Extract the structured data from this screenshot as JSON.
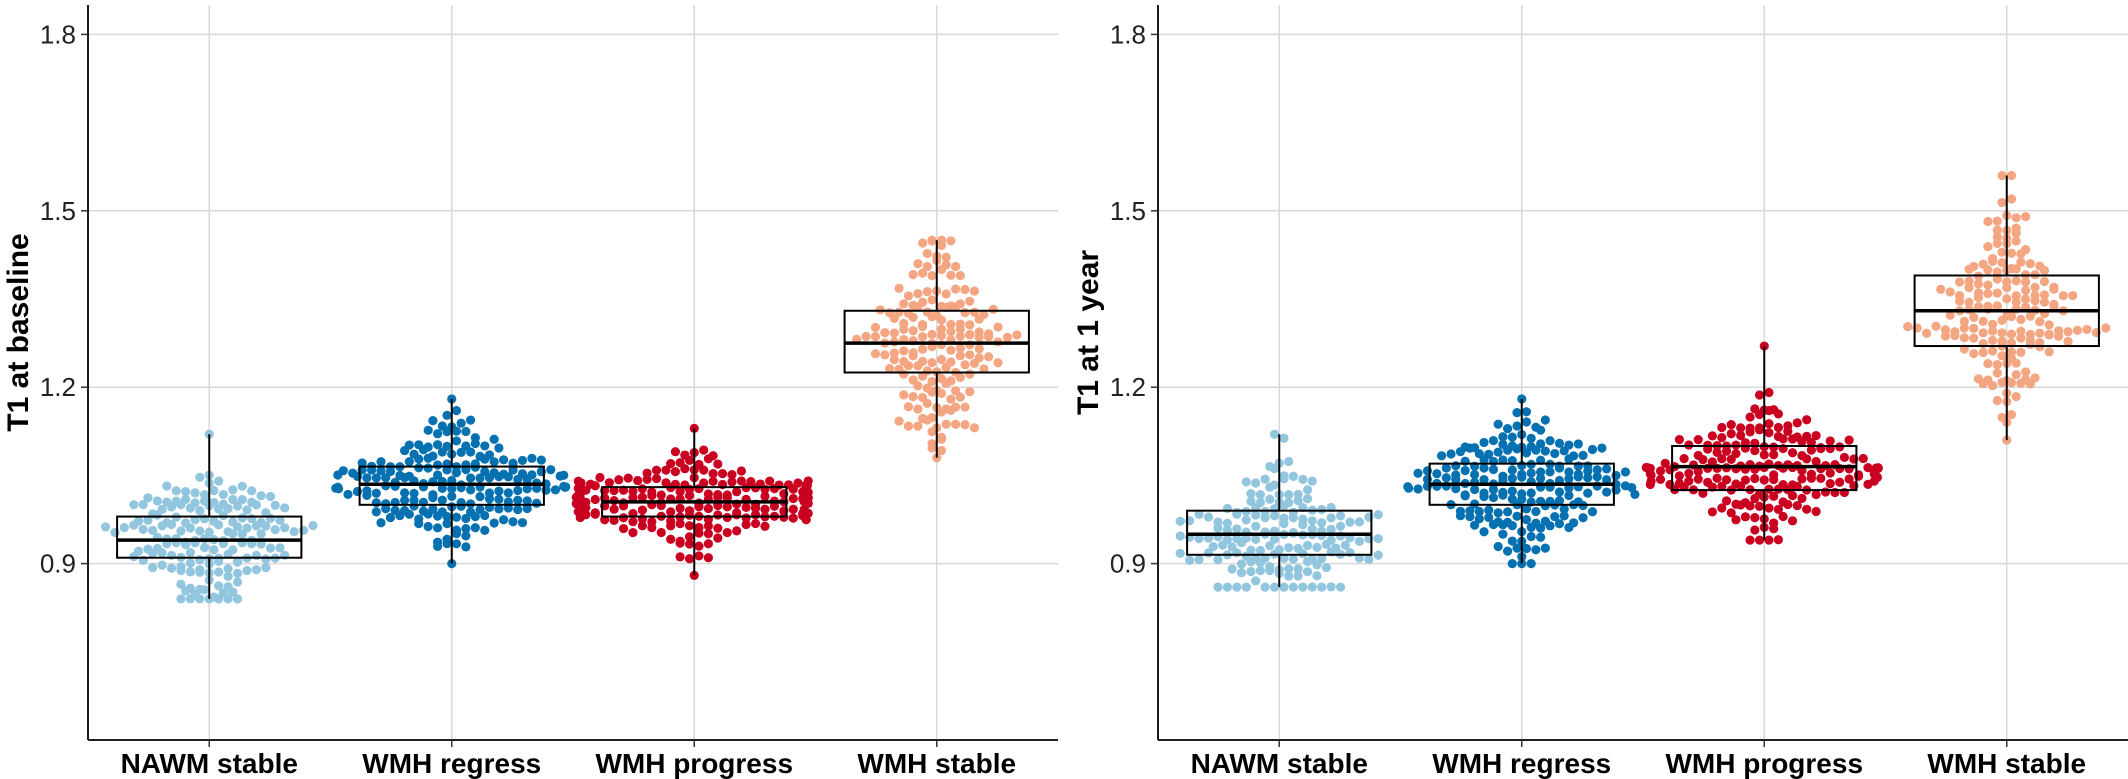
{
  "chart_data": [
    {
      "type": "scatter",
      "subtype": "beeswarm-with-boxplot",
      "ylabel": "T1 at baseline",
      "xlabel": "",
      "categories": [
        "NAWM stable",
        "WMH regress",
        "WMH progress",
        "WMH stable"
      ],
      "colors": [
        "#92c5de",
        "#0571b0",
        "#ca0020",
        "#f4a582"
      ],
      "ylim": [
        0.6,
        1.85
      ],
      "yticks": [
        0.9,
        1.2,
        1.5,
        1.8
      ],
      "yticklabels": [
        "0.9",
        "1.2",
        "1.5",
        "1.8"
      ],
      "grid": true,
      "legend": "none",
      "boxes": [
        {
          "category": "NAWM stable",
          "min": 0.84,
          "q1": 0.91,
          "median": 0.94,
          "q3": 0.98,
          "max": 1.12
        },
        {
          "category": "WMH regress",
          "min": 0.9,
          "q1": 1.0,
          "median": 1.035,
          "q3": 1.065,
          "max": 1.18
        },
        {
          "category": "WMH progress",
          "min": 0.88,
          "q1": 0.98,
          "median": 1.005,
          "q3": 1.03,
          "max": 1.13
        },
        {
          "category": "WMH stable",
          "min": 1.08,
          "q1": 1.225,
          "median": 1.275,
          "q3": 1.33,
          "max": 1.45
        }
      ]
    },
    {
      "type": "scatter",
      "subtype": "beeswarm-with-boxplot",
      "ylabel": "T1 at 1 year",
      "xlabel": "",
      "categories": [
        "NAWM stable",
        "WMH regress",
        "WMH progress",
        "WMH stable"
      ],
      "colors": [
        "#92c5de",
        "#0571b0",
        "#ca0020",
        "#f4a582"
      ],
      "ylim": [
        0.6,
        1.85
      ],
      "yticks": [
        0.9,
        1.2,
        1.5,
        1.8
      ],
      "yticklabels": [
        "0.9",
        "1.2",
        "1.5",
        "1.8"
      ],
      "grid": true,
      "legend": "none",
      "boxes": [
        {
          "category": "NAWM stable",
          "min": 0.86,
          "q1": 0.915,
          "median": 0.95,
          "q3": 0.99,
          "max": 1.12
        },
        {
          "category": "WMH regress",
          "min": 0.9,
          "q1": 1.0,
          "median": 1.035,
          "q3": 1.07,
          "max": 1.18
        },
        {
          "category": "WMH progress",
          "min": 0.94,
          "q1": 1.025,
          "median": 1.065,
          "q3": 1.1,
          "max": 1.27
        },
        {
          "category": "WMH stable",
          "min": 1.11,
          "q1": 1.27,
          "median": 1.33,
          "q3": 1.39,
          "max": 1.56
        }
      ]
    }
  ]
}
